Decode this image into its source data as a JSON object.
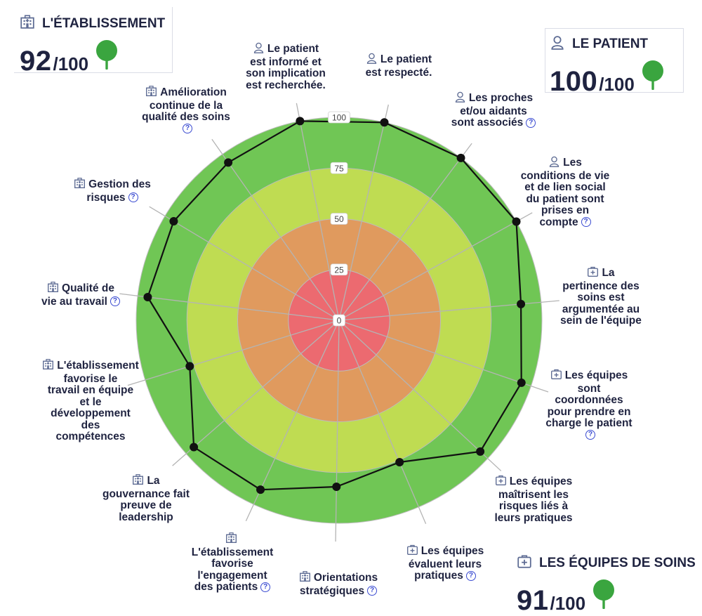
{
  "cards": [
    {
      "key": "etab",
      "title": "L'ÉTABLISSEMENT",
      "icon": "building-icon",
      "score": "92",
      "max": "/100"
    },
    {
      "key": "patient",
      "title": "LE PATIENT",
      "icon": "person-icon",
      "score": "100",
      "max": "/100"
    },
    {
      "key": "equipes",
      "title": "LES ÉQUIPES DE SOINS",
      "icon": "medical-kit-icon",
      "score": "91",
      "max": "/100"
    }
  ],
  "chart_data": {
    "type": "radar",
    "scale": [
      0,
      100
    ],
    "ring_labels": [
      "0",
      "25",
      "50",
      "75",
      "100"
    ],
    "zone_colors": {
      "0-25": "#ec6a70",
      "25-50": "#e09a5e",
      "50-75": "#bfdc52",
      "75-100": "#70c655"
    },
    "axes": [
      {
        "label": "Le patient\nest respecté.",
        "value": 100,
        "icon": "person-icon",
        "help": false
      },
      {
        "label": "Les proches\net/ou aidants\nsont associés",
        "value": 100,
        "icon": "person-icon",
        "help": true
      },
      {
        "label": "Les\nconditions de vie\net de lien social\ndu patient sont\nprises en\ncompte",
        "value": 100,
        "icon": "person-icon",
        "help": true
      },
      {
        "label": "La\npertinence des\nsoins est\nargumentée au\nsein de l'équipe",
        "value": 90,
        "icon": "medical-kit-icon",
        "help": false
      },
      {
        "label": "Les équipes\nsont\ncoordonnées\npour prendre en\ncharge le patient",
        "value": 95,
        "icon": "medical-kit-icon",
        "help": true
      },
      {
        "label": "Les équipes\nmaîtrisent les\nrisques liés à\nleurs pratiques",
        "value": 95,
        "icon": "medical-kit-icon",
        "help": false
      },
      {
        "label": "Les équipes\névaluent leurs\npratiques",
        "value": 76,
        "icon": "medical-kit-icon",
        "help": true
      },
      {
        "label": "Orientations\nstratégiques",
        "value": 82,
        "icon": "building-icon",
        "help": true
      },
      {
        "label": "L'établissement\nfavorise\nl'engagement\ndes patients",
        "value": 92,
        "icon": "building-icon",
        "help": true
      },
      {
        "label": "La\ngouvernance fait\npreuve de\nleadership",
        "value": 95,
        "icon": "building-icon",
        "help": false
      },
      {
        "label": "L'établissement\nfavorise le\ntravail en équipe\net le\ndéveloppement\ndes\ncompétences",
        "value": 77,
        "icon": "building-icon",
        "help": false
      },
      {
        "label": "Qualité de\nvie au travail",
        "value": 95,
        "icon": "building-icon",
        "help": true
      },
      {
        "label": "Gestion des\nrisques",
        "value": 95,
        "icon": "building-icon",
        "help": true
      },
      {
        "label": "Amélioration\ncontinue de la\nqualité des soins",
        "value": 95,
        "icon": "building-icon",
        "help": true
      },
      {
        "label": "Le patient\nest informé et\nson implication\nest recherchée.",
        "value": 100,
        "icon": "person-icon",
        "help": false
      }
    ]
  }
}
